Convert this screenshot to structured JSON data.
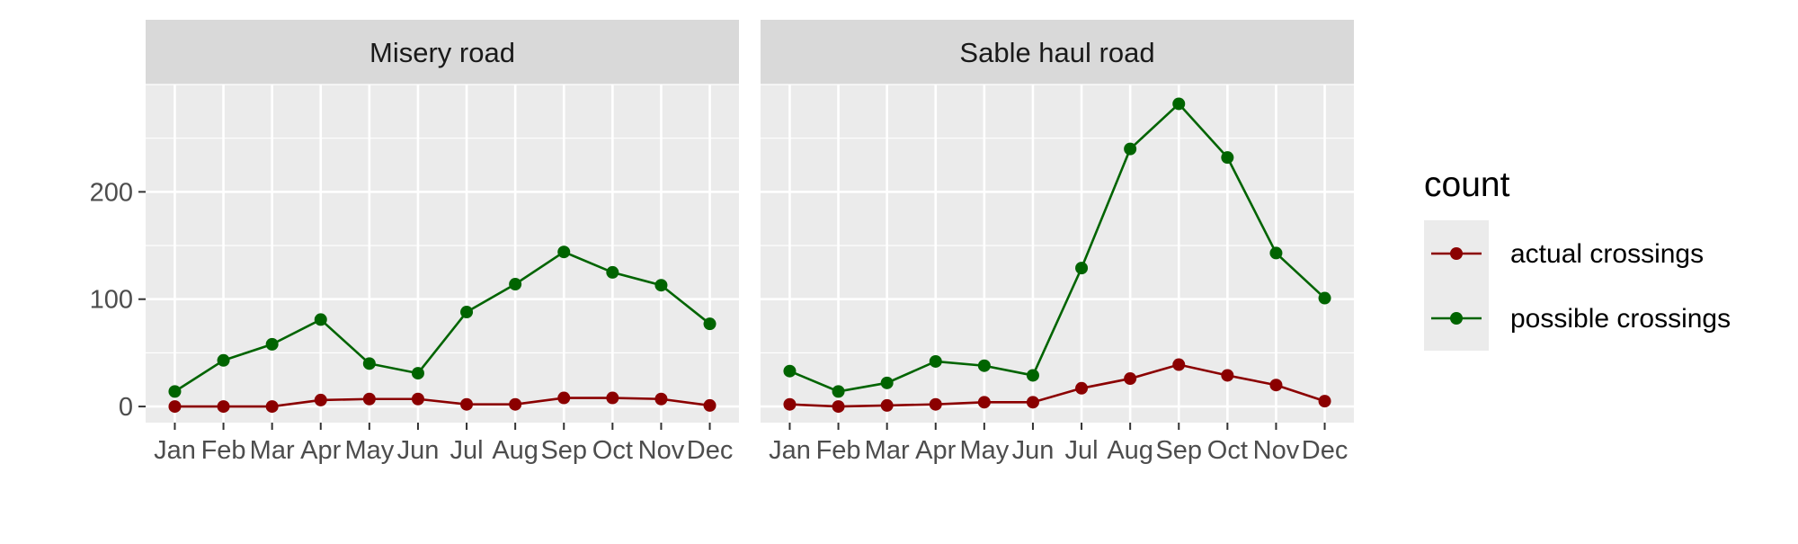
{
  "chart_data": {
    "type": "line",
    "x_categories": [
      "Jan",
      "Feb",
      "Mar",
      "Apr",
      "May",
      "Jun",
      "Jul",
      "Aug",
      "Sep",
      "Oct",
      "Nov",
      "Dec"
    ],
    "y_ticks": [
      0,
      100,
      200
    ],
    "ylim": [
      -15,
      300
    ],
    "grid": true,
    "legend": {
      "title": "count",
      "placement": "right",
      "entries": [
        "actual crossings",
        "possible crossings"
      ]
    },
    "colors": {
      "actual crossings": "#8B0000",
      "possible crossings": "#006400",
      "panel_background": "#EBEBEB",
      "strip_background": "#D9D9D9",
      "grid": "#FFFFFF"
    },
    "panels": [
      {
        "title": "Misery road",
        "series": [
          {
            "name": "actual crossings",
            "values": [
              0,
              0,
              0,
              6,
              7,
              7,
              2,
              2,
              8,
              8,
              7,
              1
            ]
          },
          {
            "name": "possible crossings",
            "values": [
              14,
              43,
              58,
              81,
              40,
              31,
              88,
              114,
              144,
              125,
              113,
              77
            ]
          }
        ]
      },
      {
        "title": "Sable haul road",
        "series": [
          {
            "name": "actual crossings",
            "values": [
              2,
              0,
              1,
              2,
              4,
              4,
              17,
              26,
              39,
              29,
              20,
              5
            ]
          },
          {
            "name": "possible crossings",
            "values": [
              33,
              14,
              22,
              42,
              38,
              29,
              129,
              240,
              282,
              232,
              143,
              101
            ]
          }
        ]
      }
    ]
  }
}
